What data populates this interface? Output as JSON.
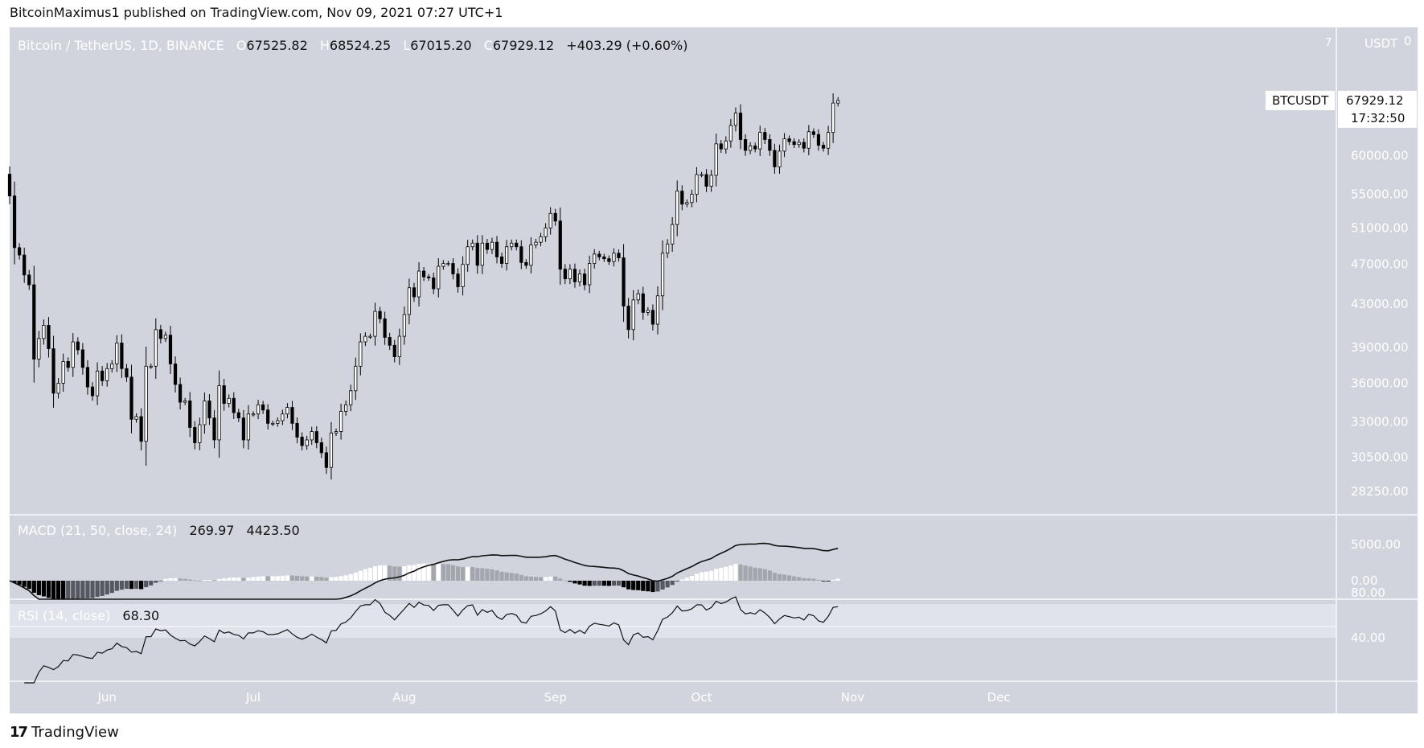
{
  "header": {
    "published_text": "BitcoinMaximus1 published on TradingView.com, Nov 09, 2021 07:27 UTC+1"
  },
  "footer": {
    "brand": "TradingView",
    "logo": "17"
  },
  "legend": {
    "symbol": "Bitcoin / TetherUS, 1D, BINANCE",
    "o_label": "O",
    "o": "67525.82",
    "h_label": "H",
    "h": "68524.25",
    "l_label": "L",
    "l": "67015.20",
    "c_label": "C",
    "c": "67929.12",
    "change": "+403.29 (+0.60%)"
  },
  "price_axis": {
    "unit": "USDT",
    "top_mark": "7",
    "corner_mark": "0",
    "current_symbol": "BTCUSDT",
    "current_price": "67929.12",
    "countdown": "17:32:50"
  },
  "macd_legend": {
    "label": "MACD (21, 50, close, 24)",
    "v1": "269.97",
    "v2": "4423.50"
  },
  "rsi_legend": {
    "label": "RSI (14, close)",
    "v": "68.30"
  },
  "colors": {
    "plot_bg": "#d1d4dc",
    "page_bg": "#ffffff",
    "up_candle": "#ffffff",
    "down_candle": "#000000",
    "rsi_band": "#e0e3eb"
  },
  "chart_data": [
    {
      "type": "candlestick",
      "panel": "price",
      "title": "Bitcoin / TetherUS, 1D, BINANCE",
      "x_tick_labels": [
        "Jun",
        "Jul",
        "Aug",
        "Sep",
        "Oct",
        "Nov",
        "Dec"
      ],
      "y_tick_labels": [
        "60000.00",
        "55000.00",
        "51000.00",
        "47000.00",
        "43000.00",
        "39000.00",
        "36000.00",
        "33000.00",
        "30500.00",
        "28250.00"
      ],
      "y_scale": "log",
      "ylim": [
        26800,
        80000
      ],
      "start_date": "2021-05-12",
      "close": [
        54800,
        48800,
        48000,
        45900,
        44900,
        38000,
        39800,
        41000,
        38900,
        35200,
        36000,
        37800,
        37300,
        39500,
        38800,
        37300,
        35700,
        35000,
        37000,
        36200,
        37200,
        37600,
        39400,
        37200,
        36500,
        33200,
        33400,
        31600,
        37400,
        37400,
        40600,
        39800,
        40100,
        37600,
        35900,
        34500,
        34600,
        32600,
        31500,
        32800,
        34600,
        33300,
        31700,
        35800,
        34400,
        34800,
        33700,
        33300,
        31700,
        33600,
        33600,
        34300,
        33900,
        32900,
        32900,
        33100,
        33600,
        34100,
        32900,
        31900,
        31300,
        31700,
        32300,
        31500,
        30800,
        29800,
        32200,
        32300,
        33800,
        34300,
        35400,
        37400,
        39500,
        40000,
        40000,
        42300,
        41600,
        39900,
        39200,
        38200,
        40000,
        42000,
        44600,
        43700,
        46300,
        45700,
        45600,
        44500,
        46800,
        47100,
        47100,
        46000,
        44700,
        47000,
        48900,
        49300,
        46900,
        49300,
        48600,
        49400,
        47800,
        47100,
        48900,
        49300,
        48900,
        47200,
        46900,
        49100,
        49400,
        50000,
        51000,
        52700,
        51800,
        46500,
        45500,
        46500,
        45200,
        46000,
        44900,
        47100,
        48100,
        47800,
        47600,
        47300,
        48200,
        47700,
        42800,
        40600,
        43400,
        44000,
        42200,
        42400,
        41100,
        43800,
        48200,
        49200,
        51400,
        55400,
        53800,
        54000,
        55000,
        57500,
        57500,
        56000,
        57400,
        61600,
        60900,
        62000,
        64200,
        66000,
        62200,
        60700,
        61300,
        60900,
        63200,
        62200,
        60700,
        58500,
        60600,
        62300,
        61900,
        61500,
        61800,
        61000,
        63300,
        62900,
        61400,
        61000,
        63200,
        67500,
        67900
      ]
    },
    {
      "type": "line+histogram",
      "panel": "macd",
      "title": "MACD (21, 50, close, 24)",
      "y_tick_labels": [
        "5000.00",
        "0.00"
      ],
      "macd_last": 4423.5,
      "histogram_last": 269.97
    },
    {
      "type": "line",
      "panel": "rsi",
      "title": "RSI (14, close)",
      "y_tick_labels": [
        "80.00",
        "40.00"
      ],
      "band": [
        40,
        70
      ],
      "rsi_last": 68.3
    }
  ]
}
